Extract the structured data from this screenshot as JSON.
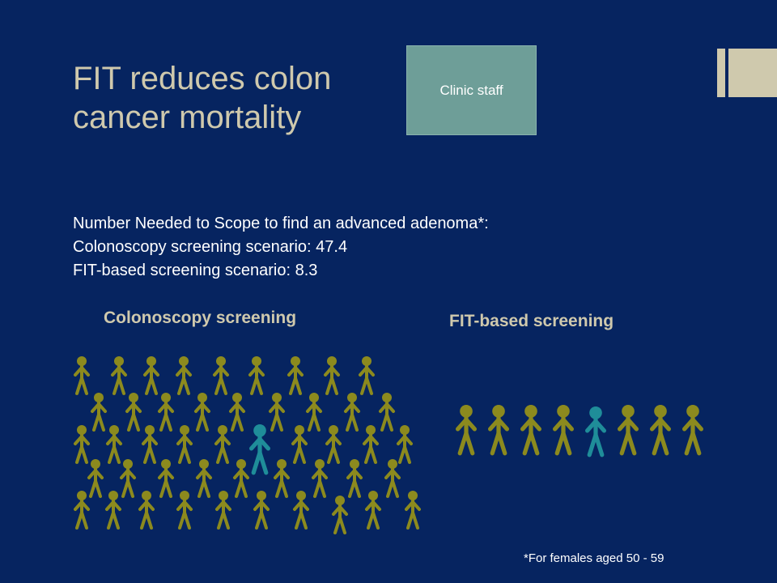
{
  "slide": {
    "title_lines": [
      "FIT reduces colon",
      "cancer mortality"
    ],
    "badge": "Clinic staff",
    "body_lines": [
      "Number Needed to Scope to find an advanced adenoma*:",
      "Colonoscopy screening scenario: 47.4",
      "FIT-based screening scenario: 8.3"
    ],
    "left_heading": "Colonoscopy screening",
    "right_heading": "FIT-based screening",
    "footnote": "*For females aged 50 - 59"
  },
  "colors": {
    "background": "#062460",
    "title": "#cfc9ad",
    "figure_default": "#8c8a1e",
    "figure_highlight": "#1f8d99",
    "badge_fill": "#6e9e98"
  },
  "figure_groups": {
    "colonoscopy": {
      "total": 47,
      "highlighted": 1
    },
    "fit": {
      "total": 8,
      "highlighted": 1
    }
  }
}
